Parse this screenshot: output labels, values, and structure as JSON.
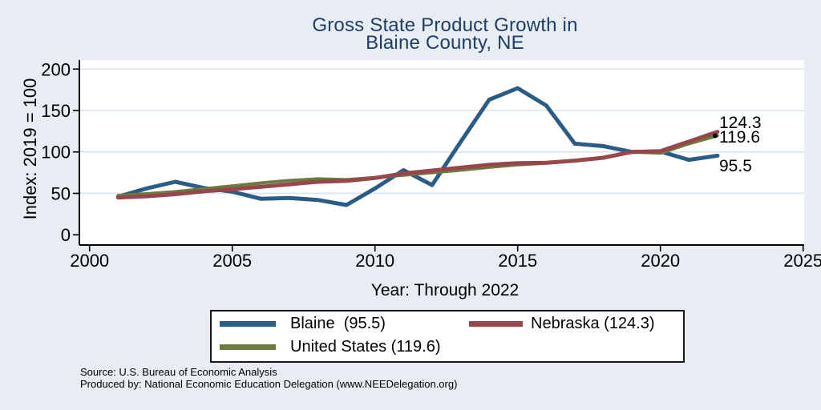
{
  "figure": {
    "title_line1": "Gross State Product Growth in",
    "title_line2": "Blaine County, NE",
    "x_axis_title": "Year: Through 2022",
    "y_axis_title": "Index: 2019 = 100",
    "source_line1": "Source: U.S. Bureau of Economic Analysis",
    "source_line2": "Produced by: National Economic Education Delegation (www.NEEDelegation.org)"
  },
  "legend": {
    "items": [
      {
        "label": "Blaine  (95.5)",
        "series": "Blaine",
        "color": "#2b5c85"
      },
      {
        "label": "Nebraska (124.3)",
        "series": "Nebraska",
        "color": "#97464b"
      },
      {
        "label": "United States (119.6)",
        "series": "United States",
        "color": "#6b7c41"
      }
    ]
  },
  "chart_data": {
    "type": "line",
    "title": "Gross State Product Growth in Blaine County, NE",
    "xlabel": "Year: Through 2022",
    "ylabel": "Index: 2019 = 100",
    "xlim": [
      2000,
      2025
    ],
    "ylim": [
      0,
      200
    ],
    "x_ticks": [
      2000,
      2005,
      2010,
      2015,
      2020,
      2025
    ],
    "y_ticks": [
      0,
      50,
      100,
      150,
      200
    ],
    "grid": "horizontal-light",
    "legend_position": "bottom",
    "x": [
      2001,
      2002,
      2003,
      2004,
      2005,
      2006,
      2007,
      2008,
      2009,
      2010,
      2011,
      2012,
      2013,
      2014,
      2015,
      2016,
      2017,
      2018,
      2019,
      2020,
      2021,
      2022
    ],
    "series": [
      {
        "name": "Blaine",
        "color": "#2b5c85",
        "line_width": 5,
        "end_label": "95.5",
        "end_marker": false,
        "values": [
          46,
          56,
          64,
          56.5,
          52,
          43.5,
          44.5,
          42,
          36,
          56,
          78,
          60,
          112,
          163,
          177,
          156,
          110,
          107,
          100,
          100.5,
          90.5,
          95.5
        ]
      },
      {
        "name": "United States",
        "color": "#6b7c41",
        "line_width": 4,
        "end_label": "119.6",
        "end_marker": true,
        "values": [
          47.5,
          49.5,
          52,
          55.5,
          59,
          62.5,
          65.5,
          67.5,
          66.5,
          69,
          72,
          75,
          78,
          81.5,
          84.5,
          86.5,
          89.5,
          93.5,
          100,
          98.5,
          110,
          119.6
        ]
      },
      {
        "name": "Nebraska",
        "color": "#97464b",
        "line_width": 5,
        "end_label": "124.3",
        "end_marker": false,
        "values": [
          45,
          46.5,
          49,
          52.5,
          55,
          58,
          61,
          64,
          65,
          68.5,
          74,
          77.5,
          81,
          84.5,
          86.5,
          87,
          89.5,
          93,
          100,
          101,
          112.5,
          124.3
        ]
      }
    ]
  },
  "colors": {
    "background": "#e7edf2",
    "plot_background": "#ffffff",
    "gridline": "#d9e4ee",
    "axis": "#000000",
    "title_text": "#1e3e66",
    "blaine_line": "#2b5c85",
    "nebraska_line": "#97464b",
    "us_line": "#6b7c41"
  }
}
